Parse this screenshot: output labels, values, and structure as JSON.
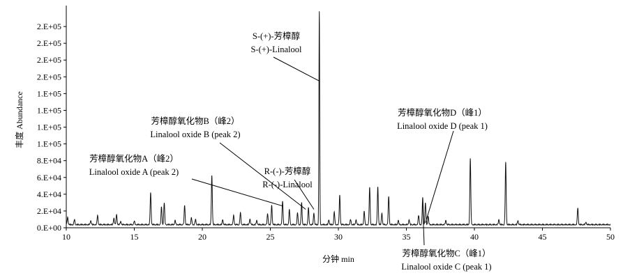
{
  "chart_data": {
    "type": "line",
    "title": "",
    "xlabel": "分钟 min",
    "ylabel": "丰度 Abundance",
    "xlim": [
      10,
      50
    ],
    "ylim": [
      0,
      260000
    ],
    "x_ticks": [
      10,
      15,
      20,
      25,
      30,
      35,
      40,
      45,
      50
    ],
    "y_ticks": [
      {
        "value": 0,
        "label": "0.E+00"
      },
      {
        "value": 20000,
        "label": "2.E+04"
      },
      {
        "value": 40000,
        "label": "4.E+04"
      },
      {
        "value": 60000,
        "label": "6.E+04"
      },
      {
        "value": 80000,
        "label": "8.E+04"
      },
      {
        "value": 100000,
        "label": "1.E+05"
      },
      {
        "value": 120000,
        "label": "1.E+05"
      },
      {
        "value": 140000,
        "label": "1.E+05"
      },
      {
        "value": 160000,
        "label": "1.E+05"
      },
      {
        "value": 180000,
        "label": "2.E+05"
      },
      {
        "value": 200000,
        "label": "2.E+05"
      },
      {
        "value": 220000,
        "label": "2.E+05"
      },
      {
        "value": 240000,
        "label": "2.E+05"
      }
    ],
    "baseline": 4000,
    "peaks": [
      {
        "x": 10.1,
        "y": 13000
      },
      {
        "x": 10.6,
        "y": 10000
      },
      {
        "x": 11.8,
        "y": 9000
      },
      {
        "x": 12.3,
        "y": 15000
      },
      {
        "x": 13.5,
        "y": 12000
      },
      {
        "x": 13.7,
        "y": 16000
      },
      {
        "x": 14.0,
        "y": 8000
      },
      {
        "x": 15.0,
        "y": 8000
      },
      {
        "x": 16.2,
        "y": 42000
      },
      {
        "x": 17.0,
        "y": 25000
      },
      {
        "x": 17.2,
        "y": 30000
      },
      {
        "x": 18.0,
        "y": 9000
      },
      {
        "x": 18.7,
        "y": 27000
      },
      {
        "x": 19.2,
        "y": 12000
      },
      {
        "x": 19.5,
        "y": 10000
      },
      {
        "x": 20.7,
        "y": 63000
      },
      {
        "x": 21.5,
        "y": 10000
      },
      {
        "x": 22.3,
        "y": 15000
      },
      {
        "x": 22.8,
        "y": 18000
      },
      {
        "x": 23.5,
        "y": 11000
      },
      {
        "x": 24.0,
        "y": 9000
      },
      {
        "x": 24.8,
        "y": 17000
      },
      {
        "x": 25.1,
        "y": 27000
      },
      {
        "x": 25.9,
        "y": 32000
      },
      {
        "x": 26.4,
        "y": 22000
      },
      {
        "x": 27.0,
        "y": 18000
      },
      {
        "x": 27.3,
        "y": 30000
      },
      {
        "x": 27.8,
        "y": 24000
      },
      {
        "x": 28.2,
        "y": 18000
      },
      {
        "x": 28.6,
        "y": 258000
      },
      {
        "x": 29.3,
        "y": 10000
      },
      {
        "x": 29.7,
        "y": 19000
      },
      {
        "x": 30.1,
        "y": 39000
      },
      {
        "x": 30.9,
        "y": 10000
      },
      {
        "x": 31.3,
        "y": 10000
      },
      {
        "x": 31.9,
        "y": 20000
      },
      {
        "x": 32.3,
        "y": 48000
      },
      {
        "x": 32.9,
        "y": 49000
      },
      {
        "x": 33.2,
        "y": 18000
      },
      {
        "x": 33.7,
        "y": 38000
      },
      {
        "x": 34.4,
        "y": 9000
      },
      {
        "x": 35.2,
        "y": 10000
      },
      {
        "x": 35.9,
        "y": 15000
      },
      {
        "x": 36.2,
        "y": 36000
      },
      {
        "x": 36.4,
        "y": 30000
      },
      {
        "x": 36.6,
        "y": 14000
      },
      {
        "x": 37.9,
        "y": 9000
      },
      {
        "x": 39.7,
        "y": 83000
      },
      {
        "x": 41.8,
        "y": 10000
      },
      {
        "x": 42.3,
        "y": 78000
      },
      {
        "x": 43.2,
        "y": 9000
      },
      {
        "x": 47.6,
        "y": 24000
      },
      {
        "x": 48.2,
        "y": 7000
      }
    ],
    "annotations": [
      {
        "id": "s-linalool",
        "lines": [
          "S-(+)-芳樟醇",
          "S-(+)-Linalool"
        ],
        "point": {
          "x": 28.6,
          "y": 175000
        }
      },
      {
        "id": "r-linalool",
        "lines": [
          "R-(-)-芳樟醇",
          "R-(-)-Linalool"
        ],
        "point": {
          "x": 28.2,
          "y": 22000
        }
      },
      {
        "id": "oxide-b",
        "lines": [
          "芳樟醇氧化物B（峰2）",
          "Linalool oxide B (peak 2)"
        ],
        "point": {
          "x": 27.6,
          "y": 22000
        }
      },
      {
        "id": "oxide-a",
        "lines": [
          "芳樟醇氧化物A（峰2）",
          "Linalool oxide A (peak 2)"
        ],
        "point": {
          "x": 25.9,
          "y": 26000
        }
      },
      {
        "id": "oxide-d",
        "lines": [
          "芳樟醇氧化物D（峰1）",
          "Linalool oxide D (peak 1)"
        ],
        "point": {
          "x": 36.4,
          "y": 6000
        }
      },
      {
        "id": "oxide-c",
        "lines": [
          "芳樟醇氧化物C（峰1）",
          "Linalool oxide C (peak 1)"
        ],
        "point": {
          "x": 36.2,
          "y": 30000
        }
      }
    ],
    "grid": false,
    "legend": "none"
  }
}
